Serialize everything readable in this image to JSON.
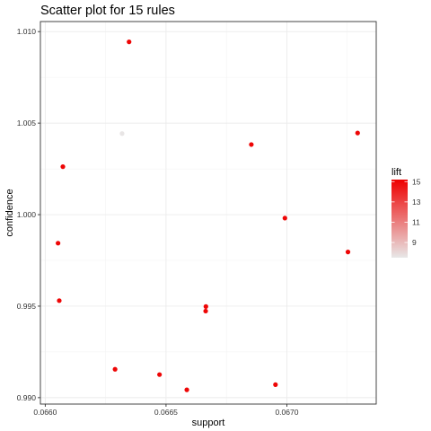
{
  "chart_data": {
    "type": "scatter",
    "title": "Scatter plot for 15 rules",
    "xlabel": "support",
    "ylabel": "confidence",
    "xlim": [
      0.06598,
      0.06737
    ],
    "ylim": [
      0.98965,
      1.01055
    ],
    "x_ticks": [
      0.066,
      0.0665,
      0.067
    ],
    "x_tick_labels": [
      "0.0660",
      "0.0665",
      "0.0670"
    ],
    "y_ticks": [
      0.99,
      0.995,
      1.0,
      1.005,
      1.01
    ],
    "y_tick_labels": [
      "0.990",
      "0.995",
      "1.000",
      "1.005",
      "1.010"
    ],
    "grid": true,
    "color_scale": {
      "title": "lift",
      "min": 7.5,
      "max": 15.2,
      "ticks": [
        9,
        11,
        13,
        15
      ],
      "tick_labels": [
        "9",
        "11",
        "13",
        "15"
      ],
      "low_color": "#e8e8e8",
      "high_color": "#ee0000"
    },
    "legend_position": "right",
    "points": [
      {
        "x": 0.066347,
        "y": 1.00944,
        "lift": 15
      },
      {
        "x": 0.066318,
        "y": 1.00443,
        "lift": 7.6
      },
      {
        "x": 0.066073,
        "y": 1.00262,
        "lift": 15
      },
      {
        "x": 0.066853,
        "y": 1.00383,
        "lift": 15
      },
      {
        "x": 0.067293,
        "y": 1.00446,
        "lift": 15
      },
      {
        "x": 0.066992,
        "y": 0.99981,
        "lift": 15
      },
      {
        "x": 0.066053,
        "y": 0.99844,
        "lift": 15
      },
      {
        "x": 0.067253,
        "y": 0.99796,
        "lift": 15
      },
      {
        "x": 0.066058,
        "y": 0.9953,
        "lift": 15
      },
      {
        "x": 0.066664,
        "y": 0.99473,
        "lift": 15
      },
      {
        "x": 0.066665,
        "y": 0.99498,
        "lift": 15
      },
      {
        "x": 0.066289,
        "y": 0.99155,
        "lift": 15
      },
      {
        "x": 0.066473,
        "y": 0.99126,
        "lift": 15
      },
      {
        "x": 0.066586,
        "y": 0.99043,
        "lift": 15
      },
      {
        "x": 0.066953,
        "y": 0.99071,
        "lift": 15
      }
    ]
  }
}
